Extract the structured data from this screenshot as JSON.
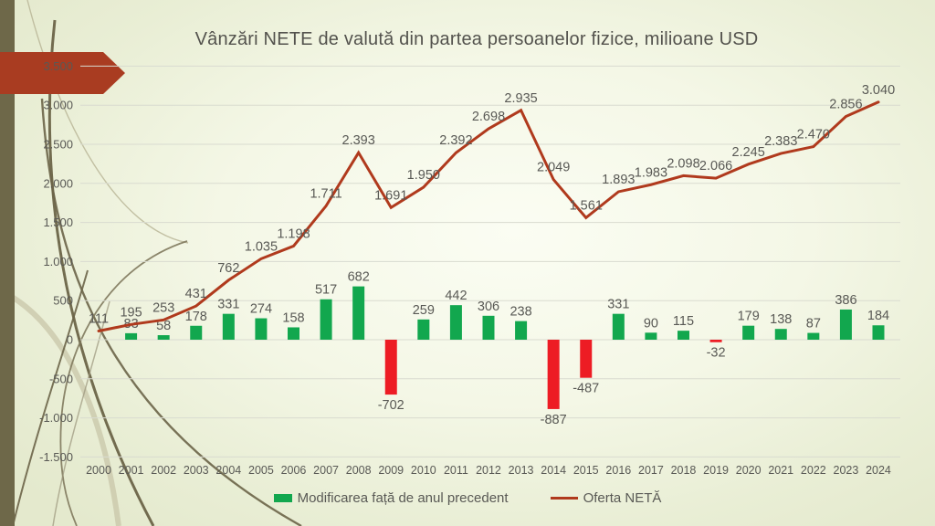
{
  "slide": {
    "title": "Vânzări NETE de valută din partea persoanelor fizice, milioane USD"
  },
  "chart_data": {
    "type": "combo bar+line",
    "x": [
      "2000",
      "2001",
      "2002",
      "2003",
      "2004",
      "2005",
      "2006",
      "2007",
      "2008",
      "2009",
      "2010",
      "2011",
      "2012",
      "2013",
      "2014",
      "2015",
      "2016",
      "2017",
      "2018",
      "2019",
      "2020",
      "2021",
      "2022",
      "2023",
      "2024"
    ],
    "series": [
      {
        "name": "Modificarea față de anul precedent",
        "type": "bar",
        "values": [
          null,
          83,
          58,
          178,
          331,
          274,
          158,
          517,
          682,
          -702,
          259,
          442,
          306,
          238,
          -887,
          -487,
          331,
          90,
          115,
          -32,
          179,
          138,
          87,
          386,
          184
        ],
        "labels": [
          "",
          "83",
          "58",
          "178",
          "331",
          "274",
          "158",
          "517",
          "682",
          "-702",
          "259",
          "442",
          "306",
          "238",
          "-887",
          "-487",
          "331",
          "90",
          "115",
          "-32",
          "179",
          "138",
          "87",
          "386",
          "184"
        ]
      },
      {
        "name": "Oferta NETĂ",
        "type": "line",
        "values": [
          111,
          195,
          253,
          431,
          762,
          1035,
          1198,
          1711,
          2393,
          1691,
          1950,
          2392,
          2698,
          2935,
          2049,
          1561,
          1893,
          1983,
          2098,
          2066,
          2245,
          2383,
          2470,
          2856,
          3040
        ],
        "labels": [
          "111",
          "195",
          "253",
          "431",
          "762",
          "1.035",
          "1.198",
          "1.711",
          "2.393",
          "1.691",
          "1.950",
          "2.392",
          "2.698",
          "2.935",
          "2.049",
          "1.561",
          "1.893",
          "1.983",
          "2.098",
          "2.066",
          "2.245",
          "2.383",
          "2.470",
          "2.856",
          "3.040"
        ]
      }
    ],
    "y_axis": {
      "min": -1500,
      "max": 3500,
      "step": 500,
      "ticks": [
        {
          "value": 3500,
          "label": "3.500"
        },
        {
          "value": 3000,
          "label": "3.000"
        },
        {
          "value": 2500,
          "label": "2.500"
        },
        {
          "value": 2000,
          "label": "2.000"
        },
        {
          "value": 1500,
          "label": "1.500"
        },
        {
          "value": 1000,
          "label": "1.000"
        },
        {
          "value": 500,
          "label": "500"
        },
        {
          "value": 0,
          "label": "0"
        },
        {
          "value": -500,
          "label": "-500"
        },
        {
          "value": -1000,
          "label": "-1.000"
        },
        {
          "value": -1500,
          "label": "-1.500"
        }
      ]
    },
    "legend_position": "bottom",
    "grid": true
  },
  "colors": {
    "bar_positive": "#12a74e",
    "bar_negative": "#ed1c24",
    "line": "#b03a1d",
    "gridline": "#d9dbd0",
    "text": "#595955",
    "accent_arrow": "#a93c21",
    "left_bar": "#6e6849"
  }
}
